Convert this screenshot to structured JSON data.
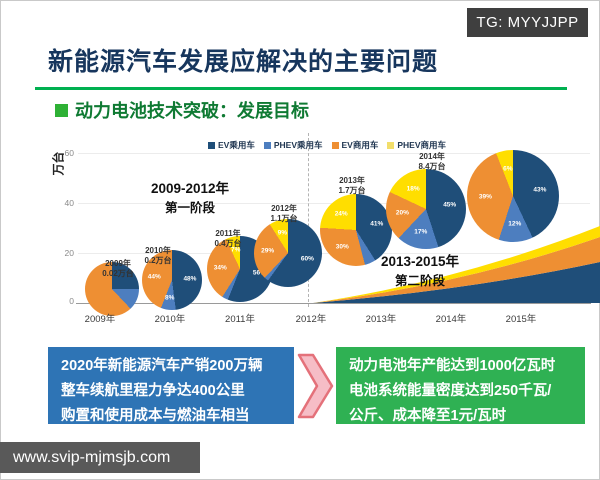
{
  "header": {
    "tg_badge": "TG: MYYJJPP",
    "title": "新能源汽车发展应解决的主要问题",
    "section_heading": "动力电池技术突破：发展目标"
  },
  "chart_data": {
    "type": "pie",
    "ylabel": "万台",
    "yticks": [
      "60",
      "40",
      "20",
      "0"
    ],
    "ylim": [
      0,
      60
    ],
    "x_labels": [
      "2009年",
      "2010年",
      "2011年",
      "2012年",
      "2013年",
      "2014年",
      "2015年"
    ],
    "legend": [
      {
        "label": "EV乘用车",
        "color": "#1F4E79"
      },
      {
        "label": "PHEV乘用车",
        "color": "#4D7EBF"
      },
      {
        "label": "EV商用车",
        "color": "#EE8F33"
      },
      {
        "label": "PHEV商用车",
        "color": "#F2DE6B"
      }
    ],
    "series_colors": [
      "#1F4E79",
      "#4D7EBF",
      "#EE8F33",
      "#FFDE00"
    ],
    "annotations": [
      {
        "line1": "2009-2012年",
        "line2": "第一阶段"
      },
      {
        "line1": "2013-2015年",
        "line2": "第二阶段"
      }
    ],
    "pies": [
      {
        "x": "2009年",
        "callout_year": "2009年",
        "callout_total": "0.02万台",
        "total_value": 0.02,
        "values": [
          25,
          13,
          62,
          0
        ],
        "show_labels": false
      },
      {
        "x": "2010年",
        "callout_year": "2010年",
        "callout_total": "0.2万台",
        "total_value": 0.2,
        "values": [
          48,
          8,
          44,
          0
        ],
        "show_labels": true
      },
      {
        "x": "2011年",
        "callout_year": "2011年",
        "callout_total": "0.4万台",
        "total_value": 0.4,
        "values": [
          56,
          3,
          34,
          7
        ],
        "show_labels": true
      },
      {
        "x": "2012年",
        "callout_year": "2012年",
        "callout_total": "1.1万台",
        "total_value": 1.1,
        "values": [
          60,
          2,
          29,
          9
        ],
        "show_labels": true
      },
      {
        "x": "2013年",
        "callout_year": "2013年",
        "callout_total": "1.7万台",
        "total_value": 1.7,
        "values": [
          41,
          5,
          30,
          24
        ],
        "show_labels": true
      },
      {
        "x": "2014年",
        "callout_year": "2014年",
        "callout_total": "8.4万台",
        "total_value": 8.4,
        "values": [
          45,
          17,
          20,
          18
        ],
        "show_labels": true
      },
      {
        "x": "2015年",
        "callout_year": "",
        "callout_total": "",
        "total_value": null,
        "values": [
          43,
          12,
          39,
          6
        ],
        "show_labels": true
      }
    ],
    "area_trend": {
      "description": "stacked area rising steeply from 2012 to 2015",
      "colors_bottom_to_top": [
        "#1F4E79",
        "#EE8F33",
        "#FFDE00"
      ]
    }
  },
  "goals": {
    "left": {
      "lines": [
        "2020年新能源汽车产销200万辆",
        "整车续航里程力争达400公里",
        "购置和使用成本与燃油车相当"
      ]
    },
    "right": {
      "lines": [
        "动力电池年产能达到1000亿瓦时",
        "电池系统能量密度达到250千瓦/",
        "公斤、成本降至1元/瓦时"
      ]
    }
  },
  "footer": {
    "url": "www.svip-mjmsjb.com"
  },
  "colors": {
    "accent_green_line": "#00B050",
    "title_text": "#17365D",
    "badge_bg": "#3F3F3F",
    "footer_bg": "#595959",
    "goal_left_bg": "#2E74B5",
    "goal_right_bg": "#2FB153",
    "arrow_fill": "#F6BDC6",
    "arrow_stroke": "#E4717A"
  }
}
